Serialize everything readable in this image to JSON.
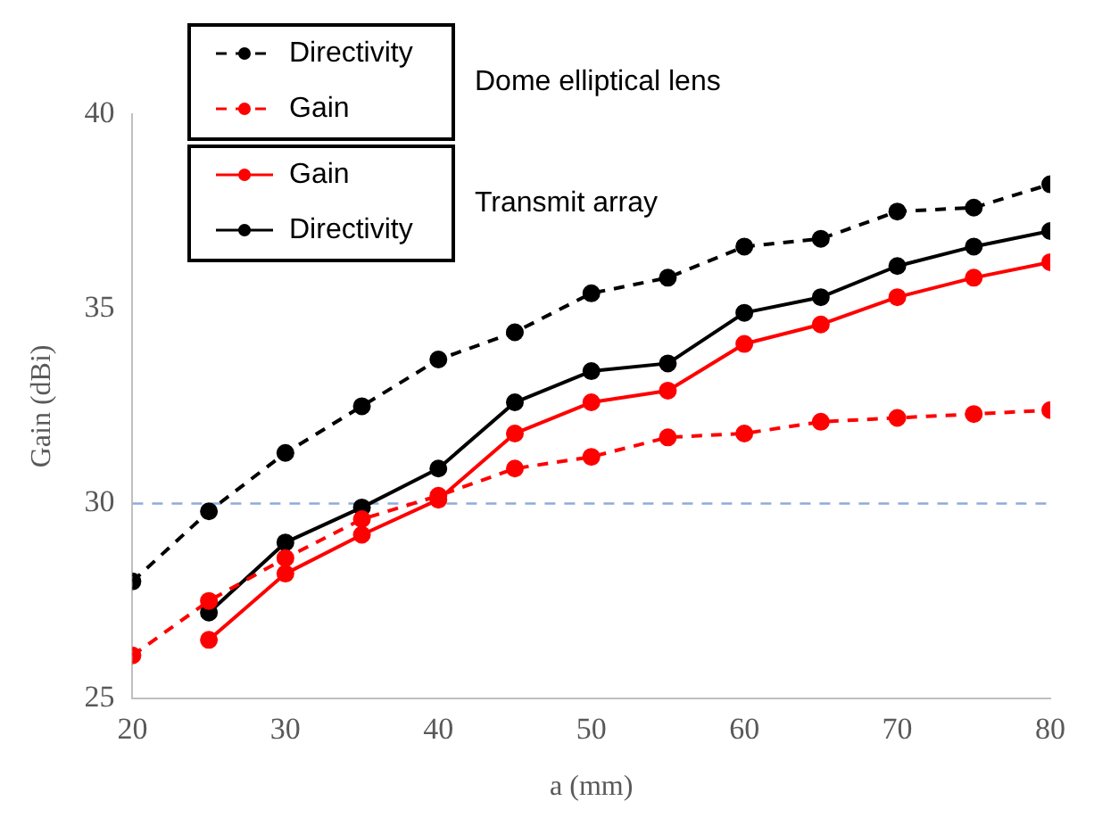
{
  "chart_data": {
    "type": "line",
    "xlabel": "a (mm)",
    "ylabel": "Gain (dBi)",
    "x": [
      20,
      25,
      30,
      35,
      40,
      45,
      50,
      55,
      60,
      65,
      70,
      75,
      80
    ],
    "series": [
      {
        "name": "Directivity",
        "color": "#000000",
        "line_style": "dashed",
        "values": [
          28.0,
          29.8,
          31.3,
          32.5,
          33.7,
          34.4,
          35.4,
          35.8,
          36.6,
          36.8,
          37.5,
          37.6,
          38.2
        ]
      },
      {
        "name": "Gain",
        "color": "#ff0000",
        "line_style": "dashed",
        "values": [
          26.1,
          27.5,
          28.6,
          29.6,
          30.2,
          30.9,
          31.2,
          31.7,
          31.8,
          32.1,
          32.2,
          32.3,
          32.4
        ]
      },
      {
        "name": "Gain",
        "color": "#ff0000",
        "line_style": "solid",
        "values": [
          null,
          26.5,
          28.2,
          29.2,
          30.1,
          31.8,
          32.6,
          32.9,
          34.1,
          34.6,
          35.3,
          35.8,
          36.2
        ]
      },
      {
        "name": "Directivity",
        "color": "#000000",
        "line_style": "solid",
        "values": [
          null,
          27.2,
          29.0,
          29.9,
          30.9,
          32.6,
          33.4,
          33.6,
          34.9,
          35.3,
          36.1,
          36.6,
          37.0
        ]
      }
    ],
    "xlim": [
      20,
      80
    ],
    "xticks": [
      20,
      30,
      40,
      50,
      60,
      70,
      80
    ],
    "ylim": [
      25,
      40
    ],
    "yticks": [
      25,
      30,
      35,
      40
    ],
    "ref_lines": [
      {
        "axis": "y",
        "value": 30,
        "color": "#8faadc",
        "line_style": "dashed"
      }
    ],
    "annotations": [
      "Dome elliptical lens",
      "Transmit array"
    ],
    "grid": false,
    "legend": "top left",
    "marker": "circle"
  }
}
